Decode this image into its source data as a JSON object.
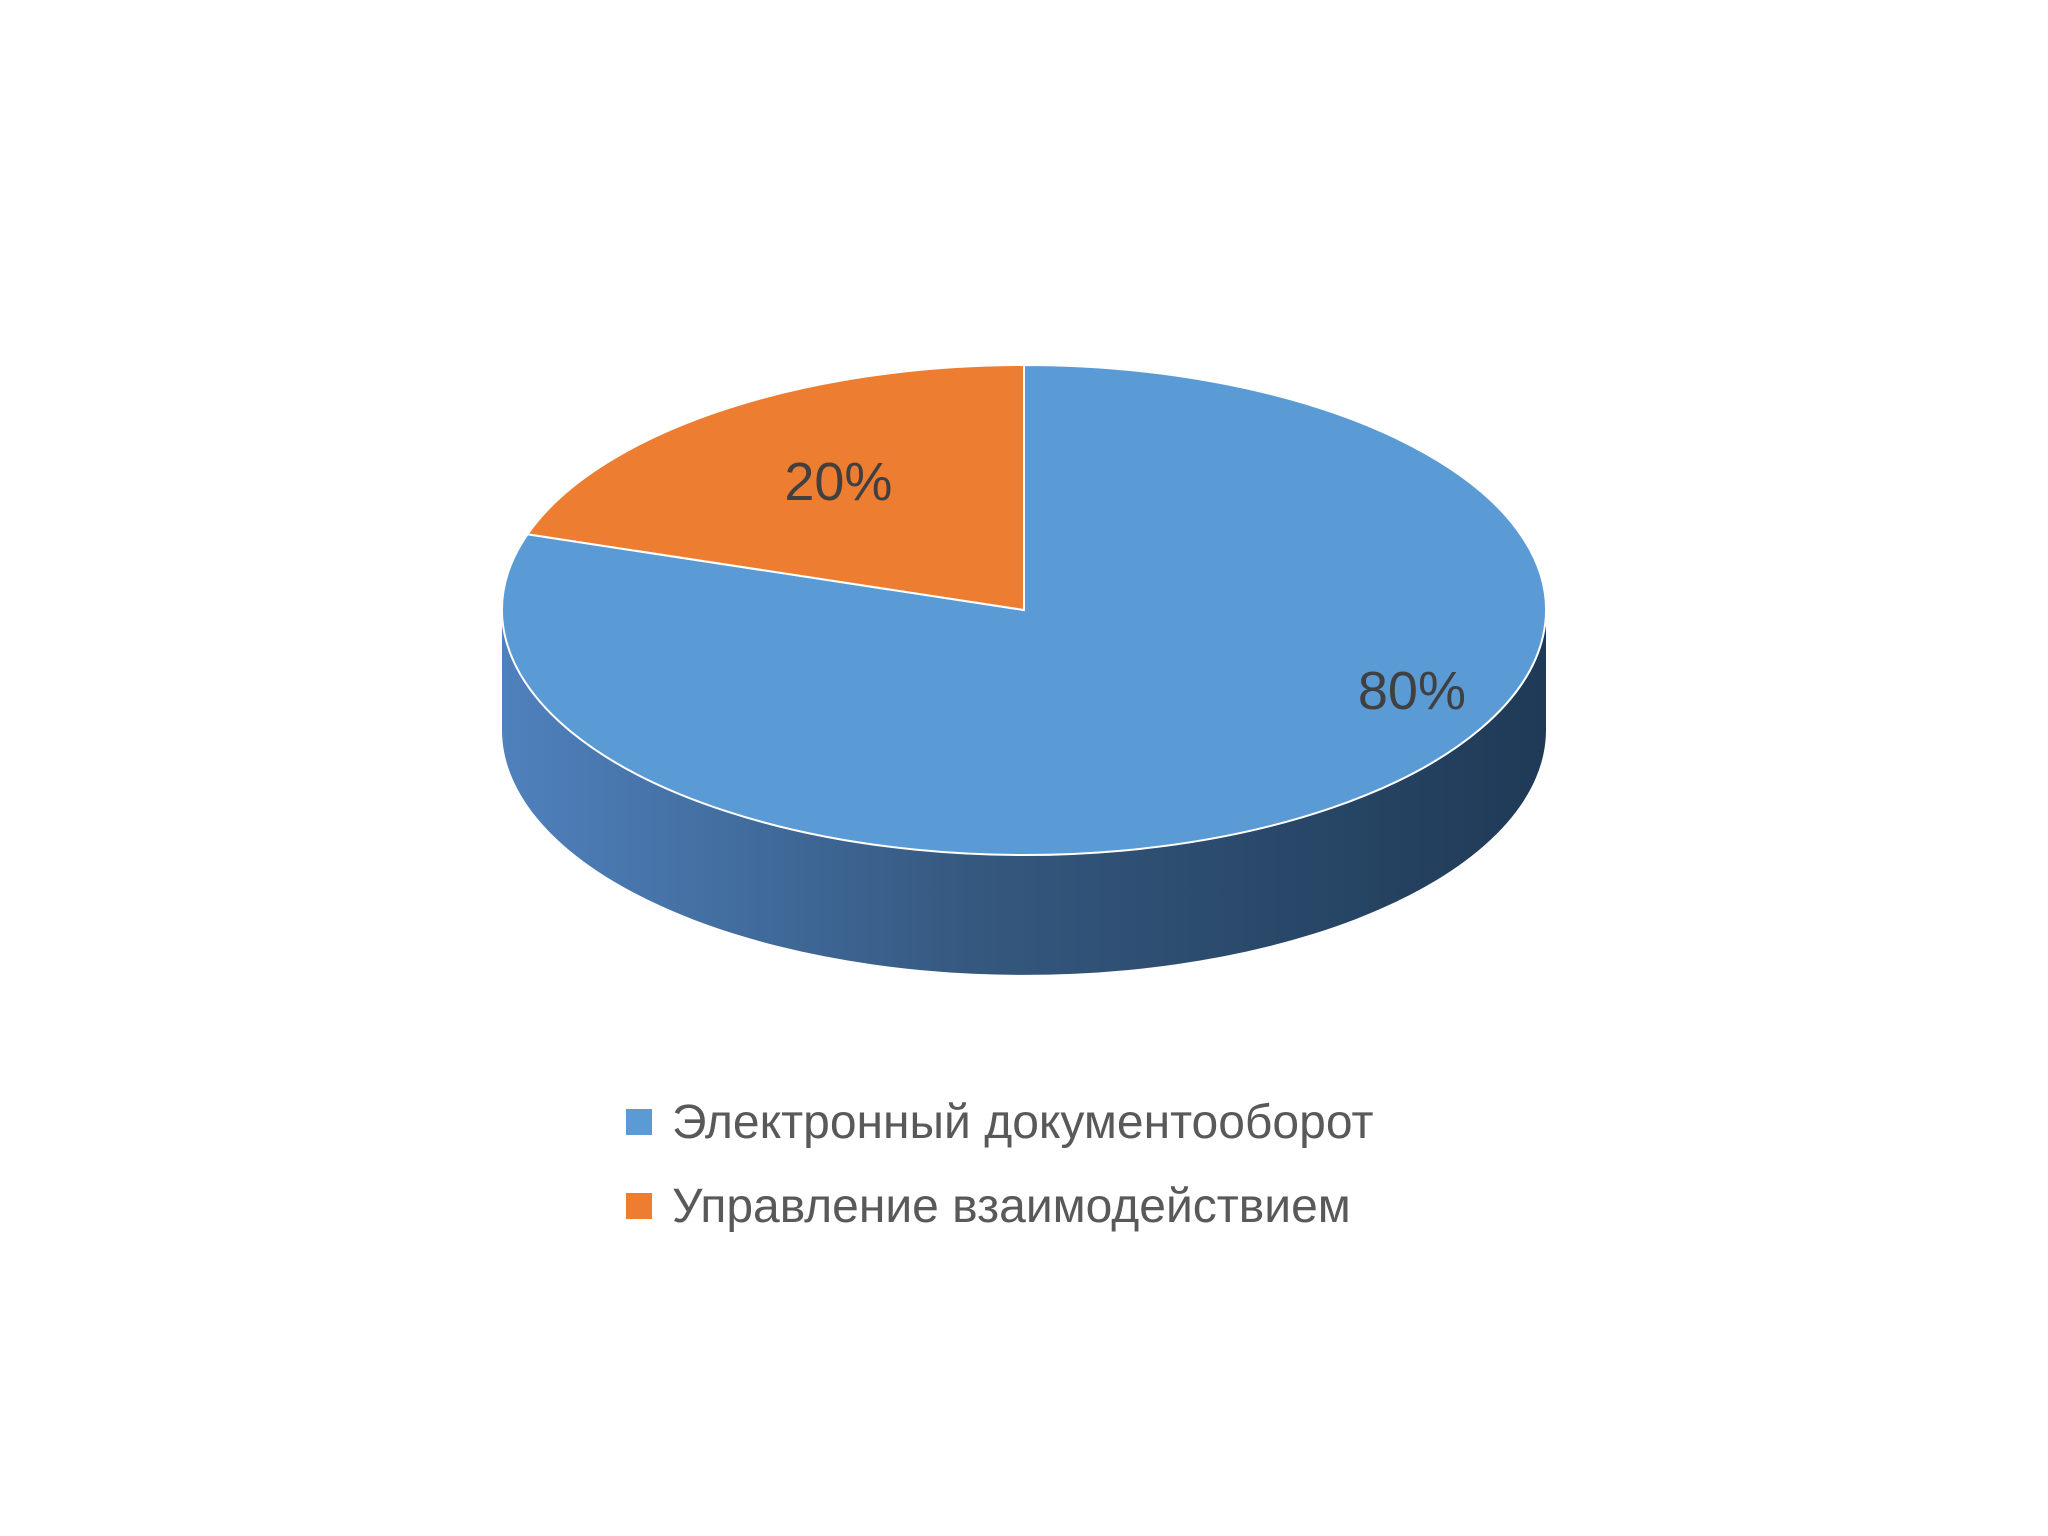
{
  "chart_data": {
    "type": "pie",
    "style": "3d",
    "categories": [
      "Электронный документооборот",
      "Управление взаимодействием"
    ],
    "values": [
      80,
      20
    ],
    "data_labels": [
      "80%",
      "20%"
    ],
    "colors": [
      "#5B9BD5",
      "#ED7D31"
    ],
    "side_color_start": "#4F81BD",
    "side_color_end": "#1F3A56",
    "title": "",
    "legend_position": "bottom"
  }
}
